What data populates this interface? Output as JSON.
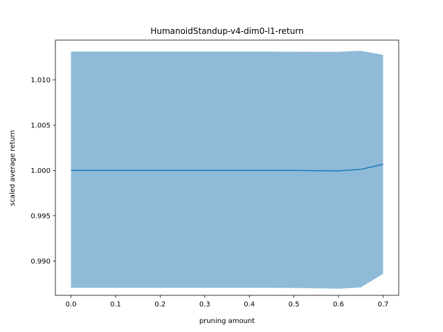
{
  "chart_data": {
    "type": "line",
    "title": "HumanoidStandup-v4-dim0-l1-return",
    "xlabel": "pruning amount",
    "ylabel": "scaled average return",
    "xlim": [
      -0.035,
      0.735
    ],
    "ylim": [
      0.9862,
      1.0144
    ],
    "x_ticks": [
      0.0,
      0.1,
      0.2,
      0.3,
      0.4,
      0.5,
      0.6,
      0.7
    ],
    "x_tick_labels": [
      "0.0",
      "0.1",
      "0.2",
      "0.3",
      "0.4",
      "0.5",
      "0.6",
      "0.7"
    ],
    "y_ticks": [
      0.99,
      0.995,
      1.0,
      1.005,
      1.01
    ],
    "y_tick_labels": [
      "0.990",
      "0.995",
      "1.000",
      "1.005",
      "1.010"
    ],
    "grid": false,
    "series": [
      {
        "x": [
          0.0,
          0.05,
          0.1,
          0.15,
          0.2,
          0.25,
          0.3,
          0.35,
          0.4,
          0.45,
          0.5,
          0.55,
          0.6,
          0.65,
          0.7
        ],
        "mean": [
          1.0,
          1.0,
          1.0,
          1.0,
          1.0,
          1.0,
          1.0,
          1.0,
          1.0,
          1.0,
          1.0,
          0.99998,
          0.99996,
          1.00012,
          1.00068
        ],
        "upper": [
          1.01313,
          1.01313,
          1.01313,
          1.01313,
          1.01313,
          1.01313,
          1.01313,
          1.01313,
          1.01313,
          1.01313,
          1.01312,
          1.01311,
          1.01311,
          1.01322,
          1.01278
        ],
        "lower": [
          0.98703,
          0.98703,
          0.98703,
          0.98703,
          0.98703,
          0.98703,
          0.98703,
          0.98703,
          0.98703,
          0.98703,
          0.98701,
          0.98698,
          0.98693,
          0.98708,
          0.98858
        ],
        "line_color": "#1f77b4",
        "band_color": "#1f77b4",
        "band_alpha": 0.5
      }
    ]
  }
}
